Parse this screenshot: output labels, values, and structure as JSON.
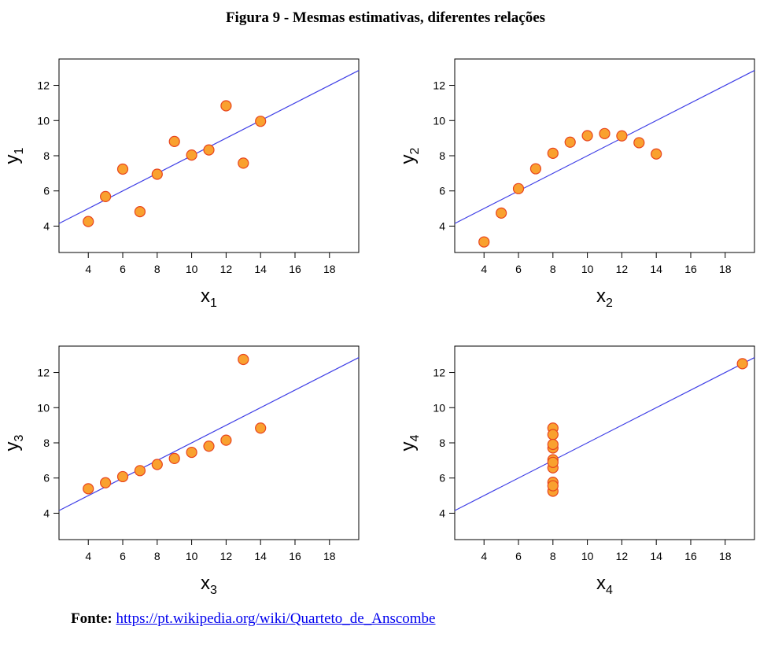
{
  "figure": {
    "title": "Figura 9 - Mesmas estimativas, diferentes relações"
  },
  "source": {
    "label": "Fonte:",
    "link_text": "https://pt.wikipedia.org/wiki/Quarteto_de_Anscombe"
  },
  "colors": {
    "regression_line": "#3f3fe6",
    "point_fill": "#f9a12f",
    "point_stroke": "#e8451e"
  },
  "chart_data": [
    {
      "type": "scatter",
      "xlabel": "x",
      "xlabel_sub": "1",
      "ylabel": "y",
      "ylabel_sub": "1",
      "xlim": [
        2.3,
        19.7
      ],
      "ylim": [
        2.5,
        13.5
      ],
      "xticks": [
        4,
        6,
        8,
        10,
        12,
        14,
        16,
        18
      ],
      "yticks": [
        4,
        6,
        8,
        10,
        12
      ],
      "x": [
        10,
        8,
        13,
        9,
        11,
        14,
        6,
        4,
        12,
        7,
        5
      ],
      "y": [
        8.04,
        6.95,
        7.58,
        8.81,
        8.33,
        9.96,
        7.24,
        4.26,
        10.84,
        4.82,
        5.68
      ],
      "regression": {
        "intercept": 3.0,
        "slope": 0.5
      },
      "grid": false
    },
    {
      "type": "scatter",
      "xlabel": "x",
      "xlabel_sub": "2",
      "ylabel": "y",
      "ylabel_sub": "2",
      "xlim": [
        2.3,
        19.7
      ],
      "ylim": [
        2.5,
        13.5
      ],
      "xticks": [
        4,
        6,
        8,
        10,
        12,
        14,
        16,
        18
      ],
      "yticks": [
        4,
        6,
        8,
        10,
        12
      ],
      "x": [
        10,
        8,
        13,
        9,
        11,
        14,
        6,
        4,
        12,
        7,
        5
      ],
      "y": [
        9.14,
        8.14,
        8.74,
        8.77,
        9.26,
        8.1,
        6.13,
        3.1,
        9.13,
        7.26,
        4.74
      ],
      "regression": {
        "intercept": 3.0,
        "slope": 0.5
      },
      "grid": false
    },
    {
      "type": "scatter",
      "xlabel": "x",
      "xlabel_sub": "3",
      "ylabel": "y",
      "ylabel_sub": "3",
      "xlim": [
        2.3,
        19.7
      ],
      "ylim": [
        2.5,
        13.5
      ],
      "xticks": [
        4,
        6,
        8,
        10,
        12,
        14,
        16,
        18
      ],
      "yticks": [
        4,
        6,
        8,
        10,
        12
      ],
      "x": [
        10,
        8,
        13,
        9,
        11,
        14,
        6,
        4,
        12,
        7,
        5
      ],
      "y": [
        7.46,
        6.77,
        12.74,
        7.11,
        7.81,
        8.84,
        6.08,
        5.39,
        8.15,
        6.42,
        5.73
      ],
      "regression": {
        "intercept": 3.0,
        "slope": 0.5
      },
      "grid": false
    },
    {
      "type": "scatter",
      "xlabel": "x",
      "xlabel_sub": "4",
      "ylabel": "y",
      "ylabel_sub": "4",
      "xlim": [
        2.3,
        19.7
      ],
      "ylim": [
        2.5,
        13.5
      ],
      "xticks": [
        4,
        6,
        8,
        10,
        12,
        14,
        16,
        18
      ],
      "yticks": [
        4,
        6,
        8,
        10,
        12
      ],
      "x": [
        8,
        8,
        8,
        8,
        8,
        8,
        8,
        19,
        8,
        8,
        8
      ],
      "y": [
        6.58,
        5.76,
        7.71,
        8.84,
        8.47,
        7.04,
        5.25,
        12.5,
        5.56,
        7.91,
        6.89
      ],
      "regression": {
        "intercept": 3.0,
        "slope": 0.5
      },
      "grid": false
    }
  ]
}
